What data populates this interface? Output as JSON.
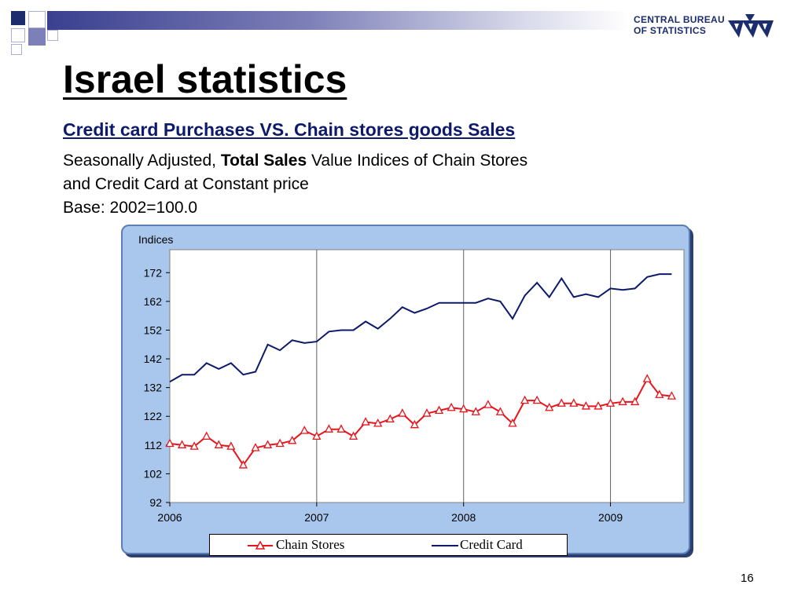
{
  "slide": {
    "title": "Israel statistics",
    "subtitle": "Credit card Purchases VS. Chain stores goods Sales",
    "description_line1_prefix": "Seasonally Adjusted, ",
    "description_line1_bold": "Total Sales",
    "description_line1_suffix": " Value Indices of Chain Stores",
    "description_line2": "and Credit Card  at Constant price",
    "description_line3": "Base: 2002=100.0",
    "page_number": "16"
  },
  "logo": {
    "line1": "CENTRAL BUREAU",
    "line2": "OF STATISTICS",
    "color": "#1c2d6e"
  },
  "chart_data": {
    "type": "line",
    "ylabel": "Indices",
    "ylim": [
      92,
      180
    ],
    "yticks": [
      92,
      102,
      112,
      122,
      132,
      142,
      152,
      162,
      172
    ],
    "x_start": 2006.0,
    "x_step": 0.08333,
    "xlim": [
      2006,
      2009.5
    ],
    "xticks": [
      "2006",
      "2007",
      "2008",
      "2009"
    ],
    "grid": "vertical-at-years",
    "legend_position": "bottom",
    "series": [
      {
        "name": "Chain Stores",
        "color": "#e8131b",
        "marker": "triangle",
        "values": [
          112.5,
          112,
          111.5,
          115,
          112,
          111.5,
          105,
          111,
          112,
          112.5,
          113.5,
          117,
          115,
          117.5,
          117.5,
          115,
          120,
          119.5,
          121,
          123,
          119,
          123,
          124,
          125,
          124.5,
          123.5,
          126,
          123.5,
          119.5,
          127.5,
          127.5,
          125,
          126.5,
          126.5,
          125.5,
          125.5,
          126.5,
          127,
          127,
          135,
          129.5,
          129
        ]
      },
      {
        "name": "Credit Card",
        "color": "#0d1a6b",
        "marker": "none",
        "values": [
          134,
          136.5,
          136.5,
          140.5,
          138.5,
          140.5,
          136.5,
          137.5,
          147,
          145,
          148.5,
          147.5,
          148,
          151.5,
          152,
          152,
          155,
          152.5,
          156,
          160,
          158,
          159.5,
          161.5,
          161.5,
          161.5,
          161.5,
          163,
          162,
          156,
          164,
          168.5,
          163.5,
          170,
          163.5,
          164.5,
          163.5,
          166.5,
          166,
          166.5,
          170.5,
          171.5,
          171.5
        ]
      }
    ]
  }
}
